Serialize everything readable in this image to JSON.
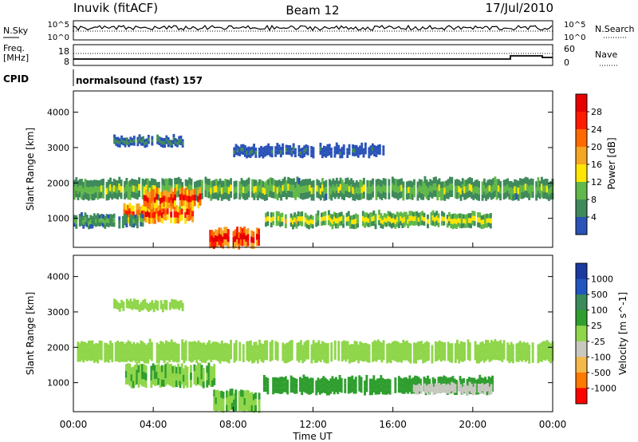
{
  "header": {
    "station": "Inuvik (fitACF)",
    "beam": "Beam 12",
    "date": "17/Jul/2010"
  },
  "strips": {
    "nsky_label": "N.Sky",
    "nsearch_label": "N.Search",
    "nsky_ticks": [
      "10^5",
      "10^0"
    ],
    "freq_label_1": "Freq.",
    "freq_label_2": "[MHz]",
    "freq_ticks": [
      "18",
      "8"
    ],
    "nave_label": "Nave",
    "nave_ticks": [
      "60",
      "0"
    ],
    "cpid_label": "CPID",
    "cpid_value": "normalsound (fast) 157"
  },
  "colors": {
    "power_scale": [
      "#1a1aff",
      "#2a52b8",
      "#3f8a5a",
      "#62b84a",
      "#ffe600",
      "#f5a623",
      "#ff6a00",
      "#ff1a00",
      "#e80000"
    ],
    "velocity_scale": [
      "#ff0000",
      "#ff7a00",
      "#f5b84a",
      "#c8c8c0",
      "#8fd64a",
      "#2f9e2f",
      "#3a8a5a",
      "#2255c0",
      "#1a3aa0"
    ]
  },
  "chart_data": [
    {
      "type": "heatmap",
      "title": "",
      "xlabel": "Time UT",
      "ylabel": "Slant Range [km]",
      "colorbar_label": "Power [dB]",
      "colorbar_ticks": [
        "28",
        "24",
        "20",
        "16",
        "12",
        "8",
        "4"
      ],
      "colorbar_range": [
        0,
        32
      ],
      "x_ticks": [
        "00:00",
        "04:00",
        "08:00",
        "12:00",
        "16:00",
        "20:00",
        "00:00"
      ],
      "y_ticks": [
        "4000",
        "3000",
        "2000",
        "1000"
      ],
      "ylim": [
        180,
        4600
      ],
      "xlim_hours": [
        0,
        24
      ],
      "bands": [
        {
          "t0": 0.0,
          "t1": 24.0,
          "r0": 1550,
          "r1": 2100,
          "value": 12
        },
        {
          "t0": 2.5,
          "t1": 6.0,
          "r0": 900,
          "r1": 1400,
          "value": 24
        },
        {
          "t0": 3.5,
          "t1": 6.5,
          "r0": 1300,
          "r1": 1800,
          "value": 26
        },
        {
          "t0": 6.8,
          "t1": 9.3,
          "r0": 180,
          "r1": 700,
          "value": 30
        },
        {
          "t0": 9.5,
          "t1": 21.0,
          "r0": 750,
          "r1": 1150,
          "value": 14
        },
        {
          "t0": 0.0,
          "t1": 3.5,
          "r0": 750,
          "r1": 1100,
          "value": 10
        },
        {
          "t0": 2.0,
          "t1": 5.5,
          "r0": 3050,
          "r1": 3300,
          "value": 8
        },
        {
          "t0": 8.0,
          "t1": 15.5,
          "r0": 2750,
          "r1": 3050,
          "value": 6
        }
      ]
    },
    {
      "type": "heatmap",
      "title": "",
      "xlabel": "Time UT",
      "ylabel": "Slant Range [km]",
      "colorbar_label": "Velocity [m s^-1]",
      "colorbar_ticks": [
        "1000",
        "500",
        "100",
        "25",
        "-25",
        "-100",
        "-500",
        "-1000"
      ],
      "colorbar_range": [
        -1000,
        1000
      ],
      "x_ticks": [
        "00:00",
        "04:00",
        "08:00",
        "12:00",
        "16:00",
        "20:00",
        "00:00"
      ],
      "y_ticks": [
        "4000",
        "3000",
        "2000",
        "1000"
      ],
      "ylim": [
        180,
        4600
      ],
      "xlim_hours": [
        0,
        24
      ],
      "bands": [
        {
          "t0": 0.0,
          "t1": 24.0,
          "r0": 1600,
          "r1": 2150,
          "value": 0
        },
        {
          "t0": 2.5,
          "t1": 7.0,
          "r0": 900,
          "r1": 1500,
          "value": 100
        },
        {
          "t0": 7.0,
          "t1": 9.3,
          "r0": 180,
          "r1": 750,
          "value": 100
        },
        {
          "t0": 9.5,
          "t1": 21.0,
          "r0": 700,
          "r1": 1150,
          "value": 300
        },
        {
          "t0": 17.0,
          "t1": 21.0,
          "r0": 700,
          "r1": 950,
          "value": -200
        },
        {
          "t0": 2.0,
          "t1": 5.5,
          "r0": 3050,
          "r1": 3300,
          "value": 0
        }
      ]
    }
  ]
}
